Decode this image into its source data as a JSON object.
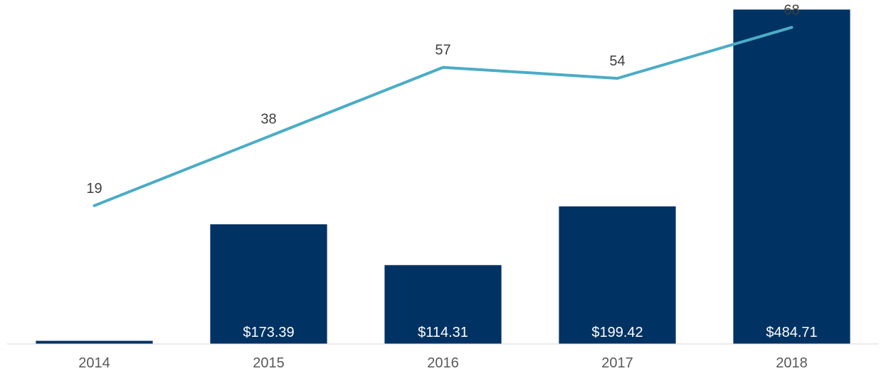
{
  "chart_data": {
    "type": "bar",
    "categories": [
      "2014",
      "2015",
      "2016",
      "2017",
      "2018"
    ],
    "series": [
      {
        "type": "bar",
        "values": [
          4.5,
          173.39,
          114.31,
          199.42,
          484.71
        ],
        "labels": [
          "",
          "$173.39",
          "$114.31",
          "$199.42",
          "$484.71"
        ],
        "color": "#003263"
      },
      {
        "type": "line",
        "values": [
          19,
          38,
          57,
          54,
          68
        ],
        "labels": [
          "19",
          "38",
          "57",
          "54",
          "68"
        ],
        "color": "#4BACC6"
      }
    ],
    "bar_axis_range": [
      0,
      480
    ],
    "line_axis_range": [
      -19,
      72
    ],
    "gridlines": false,
    "legend": "none",
    "axis_color": "#D9D9D9"
  }
}
